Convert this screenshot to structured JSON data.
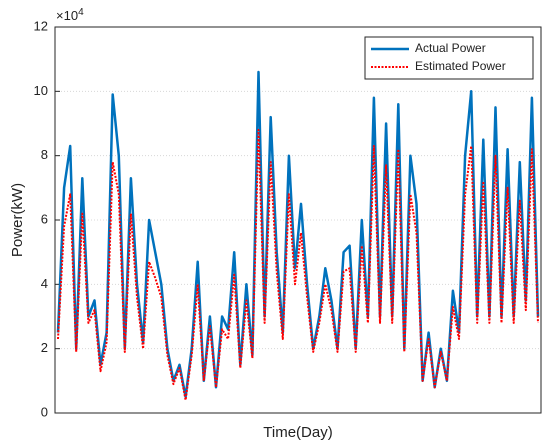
{
  "chart_data": {
    "type": "line",
    "xlabel": "Time(Day)",
    "ylabel": "Power(kW)",
    "y_exponent_base": "×10",
    "y_exponent": 4,
    "ylim": [
      0,
      12
    ],
    "yticks": [
      0,
      2,
      4,
      6,
      8,
      10,
      12
    ],
    "grid": true,
    "legend": "top-right",
    "series": [
      {
        "name": "Actual Power",
        "color": "#0072bd",
        "style": "solid",
        "values": [
          2.5,
          7,
          8.3,
          2,
          7.3,
          3,
          3.5,
          1.5,
          2.5,
          9.9,
          8,
          2,
          7.3,
          4,
          2.2,
          6,
          5,
          4,
          2,
          1,
          1.5,
          0.5,
          2,
          4.7,
          1,
          3,
          0.8,
          3,
          2.6,
          5,
          1.5,
          4,
          1.8,
          10.6,
          3,
          9.2,
          5,
          2.5,
          8,
          4.5,
          6.5,
          4,
          2,
          3,
          4.5,
          3.5,
          2,
          5,
          5.2,
          2,
          6,
          3,
          9.8,
          3,
          9,
          3,
          9.6,
          2,
          8,
          6.5,
          1,
          2.5,
          0.8,
          2,
          1,
          3.8,
          2.5,
          8,
          10,
          3,
          8.5,
          3,
          9.5,
          3,
          8.2,
          3,
          7.8,
          3.5,
          9.8,
          3
        ]
      },
      {
        "name": "Estimated Power",
        "color": "#ff0000",
        "style": "dotted",
        "values": [
          2.3,
          5.8,
          6.8,
          1.9,
          6.2,
          2.8,
          3.2,
          1.3,
          2.2,
          7.8,
          6.8,
          1.9,
          6.2,
          3.6,
          2,
          4.7,
          4.2,
          3.6,
          1.8,
          0.9,
          1.4,
          0.4,
          1.8,
          4,
          1,
          2.7,
          0.8,
          2.6,
          2.3,
          4.3,
          1.4,
          3.5,
          1.7,
          8.8,
          2.8,
          7.8,
          4.4,
          2.3,
          6.8,
          4,
          5.6,
          3.6,
          1.9,
          2.8,
          4,
          3.2,
          1.9,
          4.4,
          4.5,
          1.9,
          5.2,
          2.8,
          8.3,
          2.8,
          7.7,
          2.8,
          8.2,
          1.9,
          6.8,
          5.6,
          1,
          2.3,
          0.8,
          1.9,
          1,
          3.3,
          2.3,
          6.8,
          8.3,
          2.8,
          7.2,
          2.8,
          8,
          2.8,
          7,
          2.8,
          6.6,
          3.2,
          8.2,
          2.8
        ]
      }
    ]
  }
}
